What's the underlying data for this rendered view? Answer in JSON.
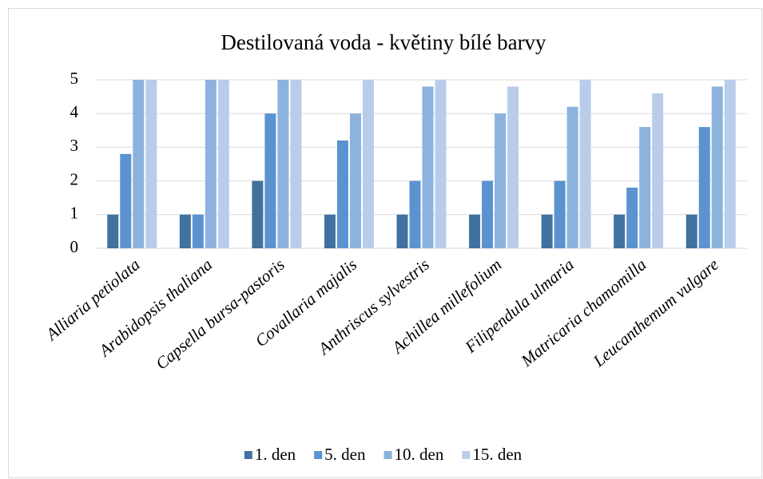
{
  "chart_data": {
    "type": "bar",
    "title": "Destilovaná voda - květiny bílé barvy",
    "categories": [
      "Alliaria petiolata",
      "Arabidopsis thaliana",
      "Capsella bursa-pastoris",
      "Covallaria majalis",
      "Anthriscus sylvestris",
      "Achillea millefolium",
      "Filipendula ulmaria",
      "Matricaria chamomilla",
      "Leucanthemum vulgare"
    ],
    "series": [
      {
        "name": "1. den",
        "color": "#41729f",
        "values": [
          1,
          1,
          2,
          1,
          1,
          1,
          1,
          1,
          1
        ]
      },
      {
        "name": "5. den",
        "color": "#5b93d0",
        "values": [
          2.8,
          1,
          4,
          3.2,
          2,
          2,
          2,
          1.8,
          3.6
        ]
      },
      {
        "name": "10. den",
        "color": "#8cb2de",
        "values": [
          5,
          5,
          5,
          4,
          4.8,
          4,
          4.2,
          3.6,
          4.8
        ]
      },
      {
        "name": "15. den",
        "color": "#b9cdeb",
        "values": [
          5,
          5,
          5,
          5,
          5,
          4.8,
          5,
          4.6,
          5
        ]
      }
    ],
    "ylim": [
      0,
      5
    ],
    "yticks": [
      0,
      1,
      2,
      3,
      4,
      5
    ],
    "grid": true,
    "legend": "bottom"
  }
}
